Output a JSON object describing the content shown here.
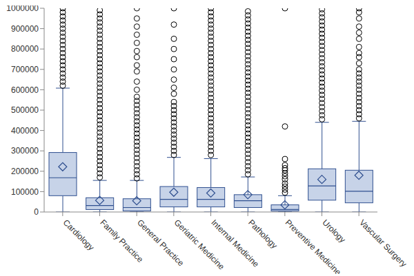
{
  "chart_data": {
    "type": "box",
    "categories": [
      "Cardiology",
      "Family Practice",
      "General Practice",
      "Geriatric Medicine",
      "Internal Medicine",
      "Pathology",
      "Preventive Medicine",
      "Urology",
      "Vascular Surgery"
    ],
    "boxes": [
      {
        "whisker_low": 0,
        "q1": 80000,
        "median": 168000,
        "q3": 292000,
        "whisker_high": 608000,
        "mean": 222000,
        "outliers": [
          620000,
          640000,
          660000,
          680000,
          700000,
          720000,
          740000,
          760000,
          780000,
          800000,
          820000,
          840000,
          860000,
          880000,
          900000,
          920000,
          940000,
          960000,
          980000,
          1000000
        ]
      },
      {
        "whisker_low": 0,
        "q1": 12000,
        "median": 32000,
        "q3": 70000,
        "whisker_high": 155000,
        "mean": 57000,
        "outliers": [
          170000,
          190000,
          210000,
          230000,
          250000,
          270000,
          290000,
          310000,
          330000,
          350000,
          370000,
          390000,
          410000,
          430000,
          450000,
          470000,
          490000,
          510000,
          530000,
          550000,
          570000,
          590000,
          610000,
          630000,
          650000,
          670000,
          690000,
          710000,
          730000,
          750000,
          770000,
          790000,
          810000,
          830000,
          850000,
          870000,
          890000,
          910000,
          930000,
          950000,
          970000,
          990000
        ]
      },
      {
        "whisker_low": 0,
        "q1": 5000,
        "median": 22000,
        "q3": 65000,
        "whisker_high": 155000,
        "mean": 55000,
        "outliers": [
          165000,
          185000,
          205000,
          225000,
          245000,
          265000,
          285000,
          305000,
          325000,
          345000,
          365000,
          385000,
          405000,
          425000,
          445000,
          465000,
          485000,
          505000,
          525000,
          545000,
          565000,
          600000,
          640000,
          690000,
          720000,
          760000,
          790000,
          830000,
          870000,
          910000,
          950000,
          1000000
        ]
      },
      {
        "whisker_low": 0,
        "q1": 25000,
        "median": 62000,
        "q3": 125000,
        "whisker_high": 268000,
        "mean": 97000,
        "outliers": [
          280000,
          300000,
          320000,
          340000,
          360000,
          380000,
          400000,
          420000,
          440000,
          460000,
          480000,
          500000,
          520000,
          540000,
          580000,
          610000,
          650000,
          700000,
          750000,
          800000,
          850000,
          920000,
          1000000
        ]
      },
      {
        "whisker_low": 0,
        "q1": 25000,
        "median": 62000,
        "q3": 120000,
        "whisker_high": 262000,
        "mean": 93000,
        "outliers": [
          280000,
          300000,
          320000,
          340000,
          360000,
          380000,
          400000,
          420000,
          440000,
          460000,
          480000,
          500000,
          520000,
          540000,
          560000,
          580000,
          600000,
          620000,
          640000,
          660000,
          680000,
          700000,
          720000,
          740000,
          760000,
          780000,
          800000,
          820000,
          840000,
          860000,
          880000,
          900000,
          920000,
          940000,
          960000,
          980000,
          1000000
        ]
      },
      {
        "whisker_low": 0,
        "q1": 22000,
        "median": 55000,
        "q3": 85000,
        "whisker_high": 172000,
        "mean": 85000,
        "outliers": [
          185000,
          205000,
          225000,
          245000,
          265000,
          285000,
          305000,
          325000,
          345000,
          365000,
          385000,
          405000,
          425000,
          445000,
          465000,
          485000,
          505000,
          525000,
          545000,
          565000,
          585000,
          605000,
          625000,
          645000,
          665000,
          685000,
          705000,
          725000,
          745000,
          765000,
          785000,
          805000,
          825000,
          845000,
          865000,
          885000,
          905000,
          925000,
          945000,
          965000,
          985000
        ]
      },
      {
        "whisker_low": 0,
        "q1": 5000,
        "median": 12000,
        "q3": 35000,
        "whisker_high": 80000,
        "mean": 35000,
        "outliers": [
          95000,
          110000,
          125000,
          140000,
          160000,
          175000,
          190000,
          205000,
          215000,
          230000,
          260000,
          420000,
          1000000
        ]
      },
      {
        "whisker_low": 0,
        "q1": 58000,
        "median": 128000,
        "q3": 212000,
        "whisker_high": 440000,
        "mean": 160000,
        "outliers": [
          455000,
          475000,
          495000,
          515000,
          535000,
          555000,
          575000,
          595000,
          615000,
          635000,
          655000,
          675000,
          695000,
          715000,
          735000,
          755000,
          775000,
          795000,
          815000,
          835000,
          855000,
          875000,
          895000,
          915000,
          935000,
          955000,
          975000,
          995000
        ]
      },
      {
        "whisker_low": 0,
        "q1": 45000,
        "median": 102000,
        "q3": 205000,
        "whisker_high": 445000,
        "mean": 180000,
        "outliers": [
          460000,
          480000,
          500000,
          520000,
          540000,
          560000,
          580000,
          600000,
          620000,
          640000,
          660000,
          680000,
          700000,
          730000,
          760000,
          780000,
          810000,
          850000,
          880000,
          910000,
          950000,
          980000,
          1000000
        ]
      }
    ],
    "color": "#2f4f8f",
    "ylim": [
      0,
      1000000
    ],
    "yticks": [
      0,
      100000,
      200000,
      300000,
      400000,
      500000,
      600000,
      700000,
      800000,
      900000,
      1000000
    ],
    "grid": false
  }
}
